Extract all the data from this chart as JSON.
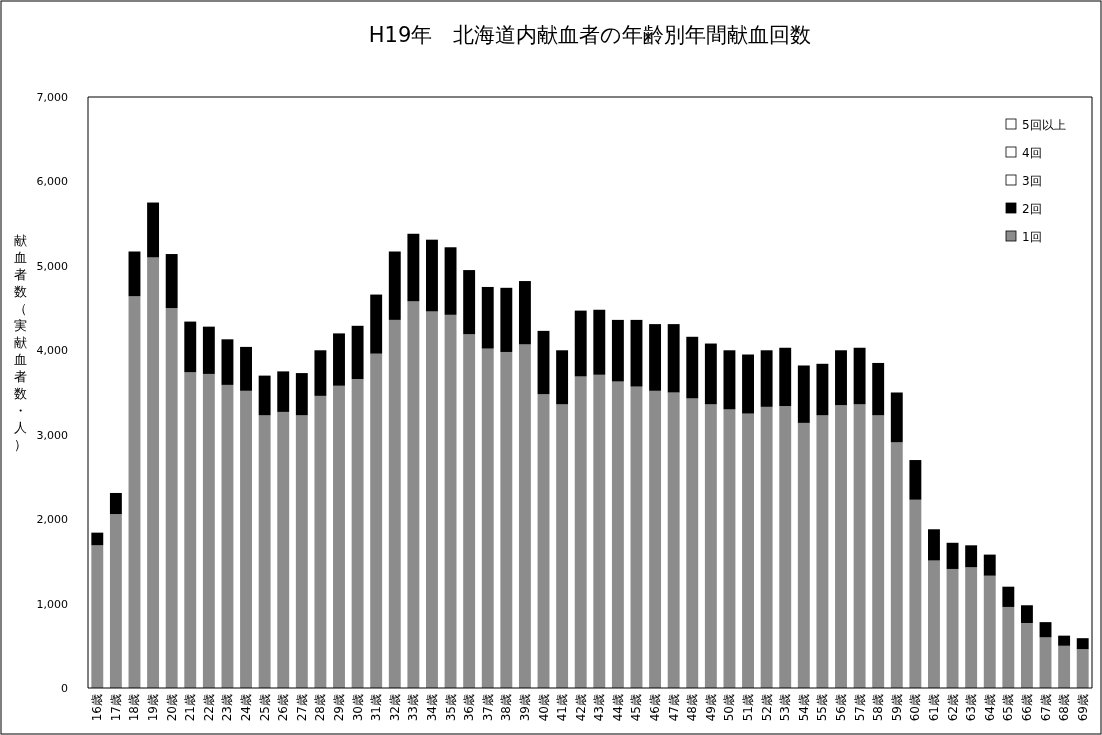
{
  "chart_data": {
    "type": "bar",
    "stacked": true,
    "title": "H19年　北海道内献血者の年齢別年間献血回数",
    "ylabel": "献血者数（実献血者数・人）",
    "categories": [
      "16歳",
      "17歳",
      "18歳",
      "19歳",
      "20歳",
      "21歳",
      "22歳",
      "23歳",
      "24歳",
      "25歳",
      "26歳",
      "27歳",
      "28歳",
      "29歳",
      "30歳",
      "31歳",
      "32歳",
      "33歳",
      "34歳",
      "35歳",
      "36歳",
      "37歳",
      "38歳",
      "39歳",
      "40歳",
      "41歳",
      "42歳",
      "43歳",
      "44歳",
      "45歳",
      "46歳",
      "47歳",
      "48歳",
      "49歳",
      "50歳",
      "51歳",
      "52歳",
      "53歳",
      "54歳",
      "55歳",
      "56歳",
      "57歳",
      "58歳",
      "59歳",
      "60歳",
      "61歳",
      "62歳",
      "63歳",
      "64歳",
      "65歳",
      "66歳",
      "67歳",
      "68歳",
      "69歳"
    ],
    "series": [
      {
        "name": "1回",
        "color": "#8c8c8c",
        "values": [
          1690,
          2060,
          4640,
          5100,
          4500,
          3740,
          3720,
          3590,
          3520,
          3230,
          3270,
          3230,
          3460,
          3580,
          3660,
          3960,
          4360,
          4580,
          4460,
          4420,
          4190,
          4020,
          3980,
          4070,
          3480,
          3360,
          3690,
          3710,
          3630,
          3570,
          3520,
          3500,
          3430,
          3360,
          3300,
          3250,
          3330,
          3340,
          3140,
          3230,
          3350,
          3360,
          3230,
          2910,
          2230,
          1510,
          1410,
          1430,
          1330,
          960,
          770,
          600,
          500,
          460
        ]
      },
      {
        "name": "2回",
        "color": "#000000",
        "values": [
          150,
          250,
          530,
          650,
          640,
          600,
          560,
          540,
          520,
          470,
          480,
          500,
          540,
          620,
          630,
          700,
          810,
          800,
          850,
          800,
          760,
          730,
          760,
          750,
          750,
          640,
          780,
          770,
          730,
          790,
          790,
          810,
          730,
          720,
          700,
          700,
          670,
          690,
          680,
          610,
          650,
          670,
          620,
          590,
          470,
          370,
          310,
          260,
          250,
          240,
          210,
          180,
          120,
          130
        ]
      },
      {
        "name": "3回",
        "color": "#ffffff",
        "values": [
          null,
          null,
          null,
          null,
          null,
          null,
          null,
          null,
          null,
          null,
          null,
          null,
          null,
          null,
          null,
          null,
          null,
          null,
          null,
          null,
          null,
          null,
          null,
          null,
          null,
          null,
          null,
          null,
          null,
          null,
          null,
          null,
          null,
          null,
          null,
          null,
          null,
          null,
          null,
          null,
          null,
          null,
          null,
          null,
          null,
          null,
          null,
          null,
          null,
          null,
          null,
          null,
          null,
          null
        ]
      },
      {
        "name": "4回",
        "color": "#ffffff",
        "values": [
          null,
          null,
          null,
          null,
          null,
          null,
          null,
          null,
          null,
          null,
          null,
          null,
          null,
          null,
          null,
          null,
          null,
          null,
          null,
          null,
          null,
          null,
          null,
          null,
          null,
          null,
          null,
          null,
          null,
          null,
          null,
          null,
          null,
          null,
          null,
          null,
          null,
          null,
          null,
          null,
          null,
          null,
          null,
          null,
          null,
          null,
          null,
          null,
          null,
          null,
          null,
          null,
          null,
          null
        ]
      },
      {
        "name": "5回以上",
        "color": "#ffffff",
        "values": [
          null,
          null,
          null,
          null,
          null,
          null,
          null,
          null,
          null,
          null,
          null,
          null,
          null,
          null,
          null,
          null,
          null,
          null,
          null,
          null,
          null,
          null,
          null,
          null,
          null,
          null,
          null,
          null,
          null,
          null,
          null,
          null,
          null,
          null,
          null,
          null,
          null,
          null,
          null,
          null,
          null,
          null,
          null,
          null,
          null,
          null,
          null,
          null,
          null,
          null,
          null,
          null,
          null,
          null
        ]
      }
    ],
    "ylim": [
      0,
      7000
    ],
    "yticks": [
      0,
      {
        "value": 1000,
        "label": "1,000"
      },
      {
        "value": 2000,
        "label": "2,000"
      },
      {
        "value": 3000,
        "label": "3,000"
      },
      {
        "value": 4000,
        "label": "4,000"
      },
      {
        "value": 5000,
        "label": "5,000"
      },
      {
        "value": 6000,
        "label": "6,000"
      },
      {
        "value": 7000,
        "label": "7,000"
      }
    ],
    "grid": false,
    "legend": "top right"
  }
}
